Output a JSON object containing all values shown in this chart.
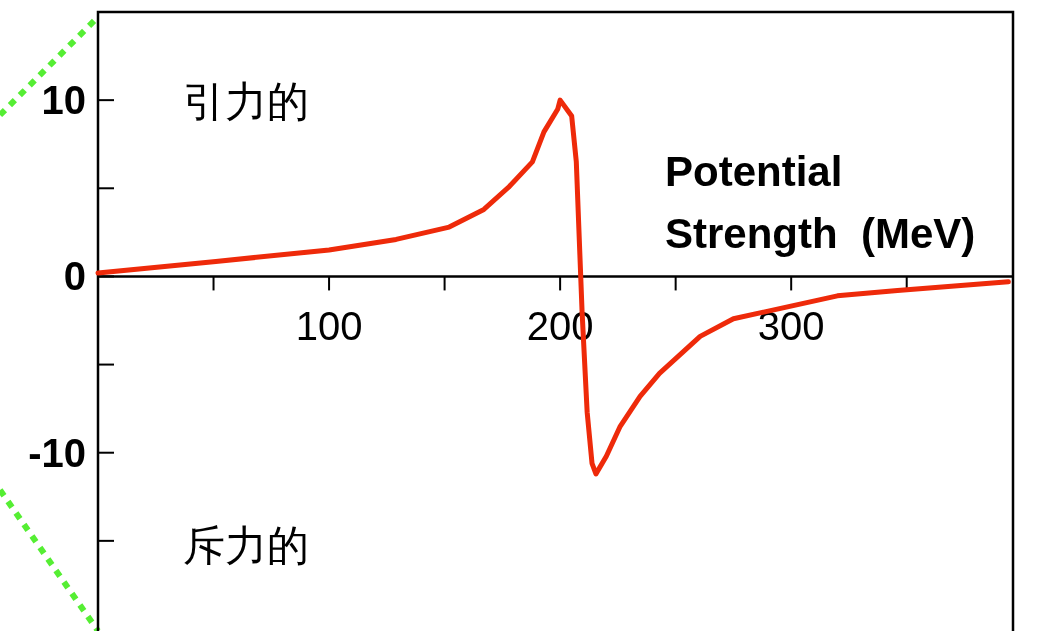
{
  "chart_data": {
    "type": "line",
    "ylabel": "Potential Strength  (MeV)",
    "annotations": [
      "引力的",
      "斥力的"
    ],
    "xlim": [
      0,
      396
    ],
    "ylim": [
      -20,
      15
    ],
    "xticks": [
      {
        "value": 50,
        "label": null
      },
      100,
      {
        "value": 150,
        "label": null
      },
      200,
      {
        "value": 250,
        "label": null
      },
      300,
      {
        "value": 350,
        "label": null
      }
    ],
    "yticks": [
      {
        "value": -15,
        "label": null
      },
      -10,
      {
        "value": -5,
        "label": null
      },
      0,
      {
        "value": 5,
        "label": null
      },
      10
    ],
    "marker": "none",
    "line_style": "solid",
    "series": [
      {
        "color": "#ee2a0a",
        "x": [
          0,
          51,
          100,
          129,
          152,
          167,
          178,
          188,
          193,
          199,
          200,
          205,
          207,
          209.5,
          211.7,
          213.8,
          215.5,
          220,
          226,
          234.6,
          243,
          260.6,
          275,
          320,
          346,
          394
        ],
        "values": [
          0.2,
          0.85,
          1.5,
          2.1,
          2.8,
          3.8,
          5.1,
          6.5,
          8.2,
          9.5,
          10,
          9.1,
          6.5,
          -2,
          -7.7,
          -10.6,
          -11.2,
          -10.2,
          -8.5,
          -6.8,
          -5.5,
          -3.4,
          -2.4,
          -1.1,
          -0.8,
          -0.3
        ]
      }
    ]
  }
}
